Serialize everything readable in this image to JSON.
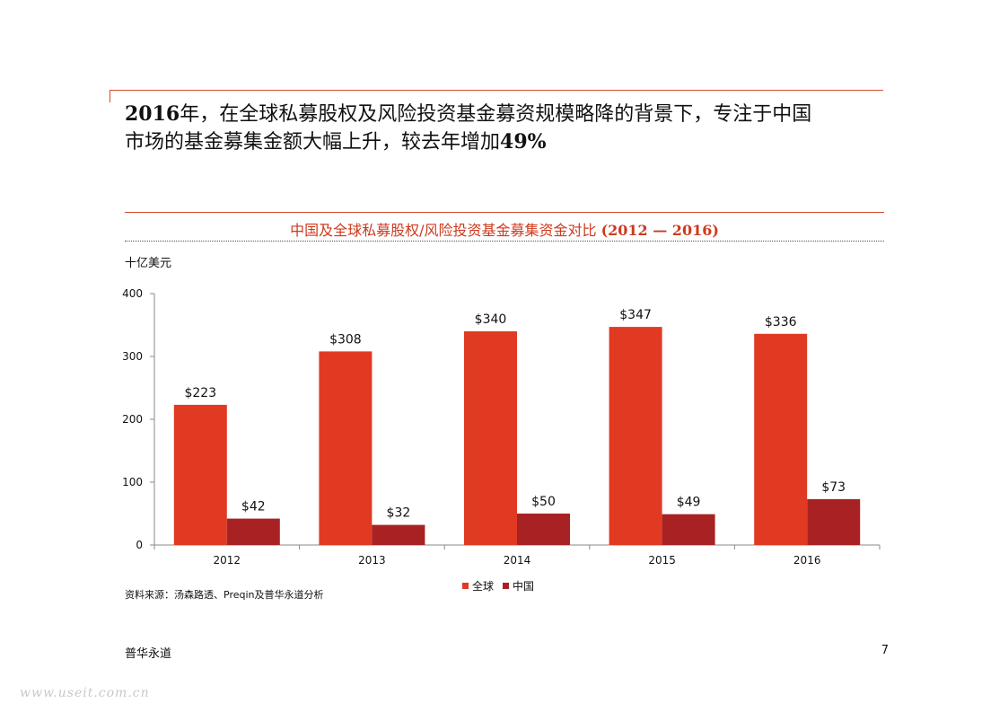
{
  "headline": {
    "line1_num": "2016",
    "line1_text": "年，在全球私募股权及风险投资基金募资规模略降的背景下，专注于中国",
    "line2_text": "市场的基金募集金额大幅上升，较去年增加",
    "line2_num": "49%"
  },
  "chart_title": {
    "text": "中国及全球私募股权/风险投资基金募集资金对比 ",
    "years": "(2012 — 2016)"
  },
  "unit_label": "十亿美元",
  "source": "资料来源：汤森路透、Preqin及普华永道分析",
  "footer": {
    "left": "普华永道",
    "page": "7"
  },
  "watermark": "www.useit.com.cn",
  "colors": {
    "global": "#e03a22",
    "china": "#a82224",
    "accent": "#cc3a1e"
  },
  "chart_data": {
    "type": "bar",
    "categories": [
      "2012",
      "2013",
      "2014",
      "2015",
      "2016"
    ],
    "series": [
      {
        "name": "全球",
        "values": [
          223,
          308,
          340,
          347,
          336
        ],
        "labels": [
          "$223",
          "$308",
          "$340",
          "$347",
          "$336"
        ]
      },
      {
        "name": "中国",
        "values": [
          42,
          32,
          50,
          49,
          73
        ],
        "labels": [
          "$42",
          "$32",
          "$50",
          "$49",
          "$73"
        ]
      }
    ],
    "ylim": [
      0,
      400
    ],
    "yticks": [
      0,
      100,
      200,
      300,
      400
    ],
    "ylabel": "十亿美元",
    "legend": "bottom-center"
  }
}
